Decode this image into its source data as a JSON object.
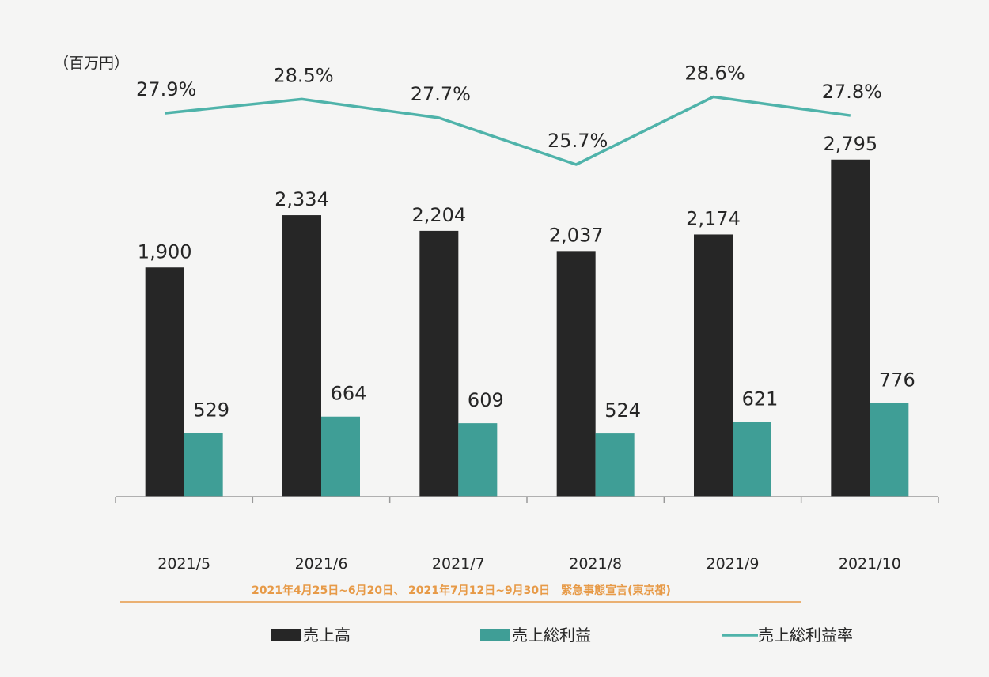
{
  "colors": {
    "background": "#f5f5f4",
    "sales": "#262626",
    "gross_profit": "#3f9e96",
    "margin_line": "#4fb3aa",
    "axis": "#999999",
    "annotation": "#e79a47"
  },
  "chart_data": {
    "type": "bar",
    "unit_label": "（百万円）",
    "categories": [
      "2021/5",
      "2021/6",
      "2021/7",
      "2021/8",
      "2021/9",
      "2021/10"
    ],
    "series": [
      {
        "name": "売上高",
        "type": "bar",
        "values": [
          1900,
          2334,
          2204,
          2037,
          2174,
          2795
        ],
        "labels": [
          "1,900",
          "2,334",
          "2,204",
          "2,037",
          "2,174",
          "2,795"
        ]
      },
      {
        "name": "売上総利益",
        "type": "bar",
        "values": [
          529,
          664,
          609,
          524,
          621,
          776
        ],
        "labels": [
          "529",
          "664",
          "609",
          "524",
          "621",
          "776"
        ]
      },
      {
        "name": "売上総利益率",
        "type": "line",
        "values": [
          27.9,
          28.5,
          27.7,
          25.7,
          28.6,
          27.8
        ],
        "labels": [
          "27.9%",
          "28.5%",
          "27.7%",
          "25.7%",
          "28.6%",
          "27.8%"
        ]
      }
    ],
    "annotation": "2021年4月25日~6月20日、 2021年7月12日~9月30日　緊急事態宣言(東京都)",
    "legend_position": "bottom"
  }
}
